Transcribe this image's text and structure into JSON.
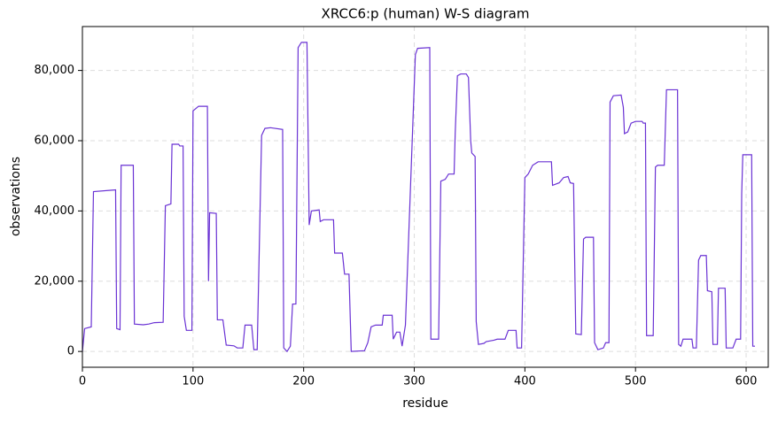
{
  "chart_data": {
    "type": "line",
    "title": "XRCC6:p (human) W-S diagram",
    "x_label": "residue",
    "y_label": "observations",
    "x": [
      0,
      2,
      8,
      10,
      30,
      31,
      34,
      35,
      46,
      47,
      55,
      60,
      65,
      73,
      75,
      80,
      81,
      87,
      88,
      91,
      92,
      94,
      99,
      100,
      105,
      113,
      114,
      115,
      121,
      122,
      127,
      130,
      137,
      140,
      145,
      147,
      153,
      155,
      158,
      162,
      165,
      170,
      181,
      182,
      185,
      188,
      190,
      193,
      195,
      198,
      203,
      205,
      207,
      214,
      215,
      218,
      227,
      228,
      235,
      237,
      241,
      243,
      255,
      258,
      261,
      265,
      271,
      272,
      280,
      281,
      284,
      287,
      289,
      292,
      301,
      303,
      314,
      315,
      322,
      324,
      328,
      331,
      336,
      337,
      339,
      342,
      347,
      349,
      351,
      352,
      355,
      356,
      358,
      363,
      365,
      372,
      375,
      382,
      385,
      392,
      393,
      397,
      400,
      403,
      407,
      412,
      424,
      425,
      431,
      435,
      439,
      441,
      444,
      446,
      451,
      453,
      455,
      462,
      463,
      466,
      471,
      473,
      476,
      477,
      480,
      487,
      489,
      490,
      493,
      496,
      500,
      506,
      507,
      509,
      510,
      516,
      518,
      520,
      526,
      528,
      538,
      539,
      541,
      543,
      551,
      552,
      555,
      557,
      559,
      564,
      565,
      569,
      570,
      574,
      575,
      581,
      582,
      588,
      591,
      595,
      596,
      597,
      605,
      606,
      608
    ],
    "series": [
      {
        "name": "observations",
        "color": "#6a32d4",
        "values": [
          0,
          6500,
          7000,
          45500,
          46000,
          6500,
          6200,
          53000,
          53000,
          7800,
          7600,
          7800,
          8200,
          8300,
          41500,
          42000,
          59000,
          59000,
          58500,
          58500,
          10000,
          6000,
          6000,
          68500,
          69800,
          69800,
          20000,
          39500,
          39300,
          9000,
          9000,
          1800,
          1600,
          1000,
          1000,
          7500,
          7500,
          500,
          500,
          61500,
          63500,
          63700,
          63200,
          1000,
          0,
          1500,
          13500,
          13500,
          86500,
          88000,
          88000,
          36000,
          40000,
          40300,
          37000,
          37500,
          37500,
          28000,
          28000,
          22000,
          22000,
          0,
          200,
          2500,
          7000,
          7500,
          7500,
          10300,
          10300,
          3500,
          5500,
          5500,
          1500,
          7500,
          84500,
          86300,
          86500,
          3500,
          3500,
          48500,
          49000,
          50500,
          50500,
          62000,
          78500,
          79000,
          79000,
          78000,
          60000,
          56500,
          55500,
          8500,
          2000,
          2300,
          2800,
          3200,
          3500,
          3500,
          6000,
          6000,
          1000,
          1000,
          49500,
          50500,
          53000,
          54000,
          54000,
          47300,
          48000,
          49500,
          49800,
          48000,
          47800,
          5000,
          4800,
          32000,
          32500,
          32500,
          2500,
          500,
          1000,
          2500,
          2500,
          71000,
          72800,
          73000,
          69500,
          62000,
          62500,
          65000,
          65500,
          65500,
          65000,
          65000,
          4500,
          4500,
          52500,
          53000,
          53000,
          74500,
          74500,
          2000,
          1500,
          3500,
          3500,
          1000,
          1000,
          26000,
          27300,
          27300,
          17300,
          17000,
          2000,
          2000,
          18000,
          18000,
          1000,
          1000,
          3500,
          3500,
          45000,
          56000,
          56000,
          1500,
          1500
        ]
      }
    ],
    "xlim": [
      0,
      620
    ],
    "xticks": [
      0,
      100,
      200,
      300,
      400,
      500,
      600
    ],
    "ylim": [
      -4500,
      92500
    ],
    "yticks": [
      0,
      {
        "value": 20000,
        "label": "20,000"
      },
      {
        "value": 40000,
        "label": "40,000"
      },
      {
        "value": 60000,
        "label": "60,000"
      },
      {
        "value": 80000,
        "label": "80,000"
      }
    ],
    "grid": true
  }
}
